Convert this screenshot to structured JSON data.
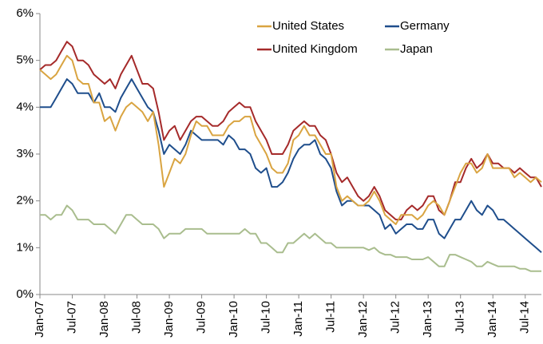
{
  "chart_data": {
    "type": "line",
    "x": [
      "2007-01",
      "2007-02",
      "2007-03",
      "2007-04",
      "2007-05",
      "2007-06",
      "2007-07",
      "2007-08",
      "2007-09",
      "2007-10",
      "2007-11",
      "2007-12",
      "2008-01",
      "2008-02",
      "2008-03",
      "2008-04",
      "2008-05",
      "2008-06",
      "2008-07",
      "2008-08",
      "2008-09",
      "2008-10",
      "2008-11",
      "2008-12",
      "2009-01",
      "2009-02",
      "2009-03",
      "2009-04",
      "2009-05",
      "2009-06",
      "2009-07",
      "2009-08",
      "2009-09",
      "2009-10",
      "2009-11",
      "2009-12",
      "2010-01",
      "2010-02",
      "2010-03",
      "2010-04",
      "2010-05",
      "2010-06",
      "2010-07",
      "2010-08",
      "2010-09",
      "2010-10",
      "2010-11",
      "2010-12",
      "2011-01",
      "2011-02",
      "2011-03",
      "2011-04",
      "2011-05",
      "2011-06",
      "2011-07",
      "2011-08",
      "2011-09",
      "2011-10",
      "2011-11",
      "2011-12",
      "2012-01",
      "2012-02",
      "2012-03",
      "2012-04",
      "2012-05",
      "2012-06",
      "2012-07",
      "2012-08",
      "2012-09",
      "2012-10",
      "2012-11",
      "2012-12",
      "2013-01",
      "2013-02",
      "2013-03",
      "2013-04",
      "2013-05",
      "2013-06",
      "2013-07",
      "2013-08",
      "2013-09",
      "2013-10",
      "2013-11",
      "2013-12",
      "2014-01",
      "2014-02",
      "2014-03",
      "2014-04",
      "2014-05",
      "2014-06",
      "2014-07",
      "2014-08",
      "2014-09",
      "2014-10"
    ],
    "series": [
      {
        "name": "United States",
        "color": "#d9a441",
        "values": [
          4.8,
          4.7,
          4.6,
          4.7,
          4.9,
          5.1,
          5.0,
          4.6,
          4.5,
          4.5,
          4.1,
          4.1,
          3.7,
          3.8,
          3.5,
          3.8,
          4.0,
          4.1,
          4.0,
          3.9,
          3.7,
          3.9,
          3.2,
          2.3,
          2.6,
          2.9,
          2.8,
          3.0,
          3.4,
          3.7,
          3.6,
          3.6,
          3.4,
          3.4,
          3.4,
          3.6,
          3.7,
          3.7,
          3.8,
          3.8,
          3.4,
          3.2,
          3.0,
          2.7,
          2.6,
          2.6,
          2.8,
          3.3,
          3.4,
          3.6,
          3.4,
          3.4,
          3.2,
          3.0,
          3.0,
          2.3,
          2.0,
          2.1,
          2.0,
          1.9,
          1.9,
          2.0,
          2.2,
          2.0,
          1.7,
          1.6,
          1.5,
          1.7,
          1.7,
          1.7,
          1.6,
          1.7,
          1.9,
          2.0,
          1.9,
          1.7,
          2.0,
          2.3,
          2.6,
          2.8,
          2.8,
          2.6,
          2.7,
          3.0,
          2.7,
          2.7,
          2.7,
          2.7,
          2.5,
          2.6,
          2.5,
          2.4,
          2.5,
          2.4
        ]
      },
      {
        "name": "Germany",
        "color": "#1f4e8c",
        "values": [
          4.0,
          4.0,
          4.0,
          4.2,
          4.4,
          4.6,
          4.5,
          4.3,
          4.3,
          4.3,
          4.1,
          4.3,
          4.0,
          4.0,
          3.9,
          4.2,
          4.4,
          4.6,
          4.4,
          4.2,
          4.0,
          3.9,
          3.5,
          3.0,
          3.2,
          3.1,
          3.0,
          3.2,
          3.5,
          3.4,
          3.3,
          3.3,
          3.3,
          3.3,
          3.2,
          3.4,
          3.3,
          3.1,
          3.1,
          3.0,
          2.7,
          2.6,
          2.7,
          2.3,
          2.3,
          2.4,
          2.6,
          2.9,
          3.1,
          3.2,
          3.2,
          3.3,
          3.0,
          2.9,
          2.7,
          2.2,
          1.9,
          2.0,
          2.0,
          1.9,
          1.9,
          1.9,
          1.8,
          1.7,
          1.4,
          1.5,
          1.3,
          1.4,
          1.5,
          1.5,
          1.4,
          1.4,
          1.6,
          1.6,
          1.3,
          1.2,
          1.4,
          1.6,
          1.6,
          1.8,
          2.0,
          1.8,
          1.7,
          1.9,
          1.8,
          1.6,
          1.6,
          1.5,
          1.4,
          1.3,
          1.2,
          1.1,
          1.0,
          0.9
        ]
      },
      {
        "name": "United Kingdom",
        "color": "#a52a2a",
        "values": [
          4.8,
          4.9,
          4.9,
          5.0,
          5.2,
          5.4,
          5.3,
          5.0,
          5.0,
          4.9,
          4.7,
          4.6,
          4.5,
          4.6,
          4.4,
          4.7,
          4.9,
          5.1,
          4.8,
          4.5,
          4.5,
          4.4,
          3.9,
          3.3,
          3.5,
          3.6,
          3.3,
          3.5,
          3.7,
          3.8,
          3.8,
          3.7,
          3.6,
          3.6,
          3.7,
          3.9,
          4.0,
          4.1,
          4.0,
          4.0,
          3.7,
          3.5,
          3.3,
          3.0,
          3.0,
          3.0,
          3.2,
          3.5,
          3.6,
          3.7,
          3.6,
          3.6,
          3.4,
          3.3,
          3.0,
          2.6,
          2.4,
          2.5,
          2.3,
          2.1,
          2.0,
          2.1,
          2.3,
          2.1,
          1.8,
          1.7,
          1.6,
          1.6,
          1.8,
          1.9,
          1.8,
          1.9,
          2.1,
          2.1,
          1.8,
          1.7,
          2.0,
          2.4,
          2.4,
          2.7,
          2.9,
          2.7,
          2.8,
          3.0,
          2.8,
          2.8,
          2.7,
          2.7,
          2.6,
          2.7,
          2.6,
          2.5,
          2.5,
          2.3
        ]
      },
      {
        "name": "Japan",
        "color": "#a9bd8e",
        "values": [
          1.7,
          1.7,
          1.6,
          1.7,
          1.7,
          1.9,
          1.8,
          1.6,
          1.6,
          1.6,
          1.5,
          1.5,
          1.5,
          1.4,
          1.3,
          1.5,
          1.7,
          1.7,
          1.6,
          1.5,
          1.5,
          1.5,
          1.4,
          1.2,
          1.3,
          1.3,
          1.3,
          1.4,
          1.4,
          1.4,
          1.4,
          1.3,
          1.3,
          1.3,
          1.3,
          1.3,
          1.3,
          1.3,
          1.4,
          1.3,
          1.3,
          1.1,
          1.1,
          1.0,
          0.9,
          0.9,
          1.1,
          1.1,
          1.2,
          1.3,
          1.2,
          1.3,
          1.2,
          1.1,
          1.1,
          1.0,
          1.0,
          1.0,
          1.0,
          1.0,
          1.0,
          0.95,
          1.0,
          0.9,
          0.85,
          0.85,
          0.8,
          0.8,
          0.8,
          0.75,
          0.75,
          0.75,
          0.8,
          0.7,
          0.6,
          0.6,
          0.85,
          0.85,
          0.8,
          0.75,
          0.7,
          0.6,
          0.6,
          0.7,
          0.65,
          0.6,
          0.6,
          0.6,
          0.6,
          0.55,
          0.55,
          0.5,
          0.5,
          0.5
        ]
      }
    ],
    "xlim": [
      "2007-01",
      "2014-10"
    ],
    "xticks": [
      {
        "value": "2007-01",
        "label": "Jan-07"
      },
      {
        "value": "2007-07",
        "label": "Jul-07"
      },
      {
        "value": "2008-01",
        "label": "Jan-08"
      },
      {
        "value": "2008-07",
        "label": "Jul-08"
      },
      {
        "value": "2009-01",
        "label": "Jan-09"
      },
      {
        "value": "2009-07",
        "label": "Jul-09"
      },
      {
        "value": "2010-01",
        "label": "Jan-10"
      },
      {
        "value": "2010-07",
        "label": "Jul-10"
      },
      {
        "value": "2011-01",
        "label": "Jan-11"
      },
      {
        "value": "2011-07",
        "label": "Jul-11"
      },
      {
        "value": "2012-01",
        "label": "Jan-12"
      },
      {
        "value": "2012-07",
        "label": "Jul-12"
      },
      {
        "value": "2013-01",
        "label": "Jan-13"
      },
      {
        "value": "2013-07",
        "label": "Jul-13"
      },
      {
        "value": "2014-01",
        "label": "Jan-14"
      },
      {
        "value": "2014-07",
        "label": "Jul-14"
      }
    ],
    "ylim": [
      0,
      6
    ],
    "yticks": [
      {
        "value": 0,
        "label": "0%"
      },
      {
        "value": 1,
        "label": "1%"
      },
      {
        "value": 2,
        "label": "2%"
      },
      {
        "value": 3,
        "label": "3%"
      },
      {
        "value": 4,
        "label": "4%"
      },
      {
        "value": 5,
        "label": "5%"
      },
      {
        "value": 6,
        "label": "6%"
      }
    ],
    "grid": false
  }
}
